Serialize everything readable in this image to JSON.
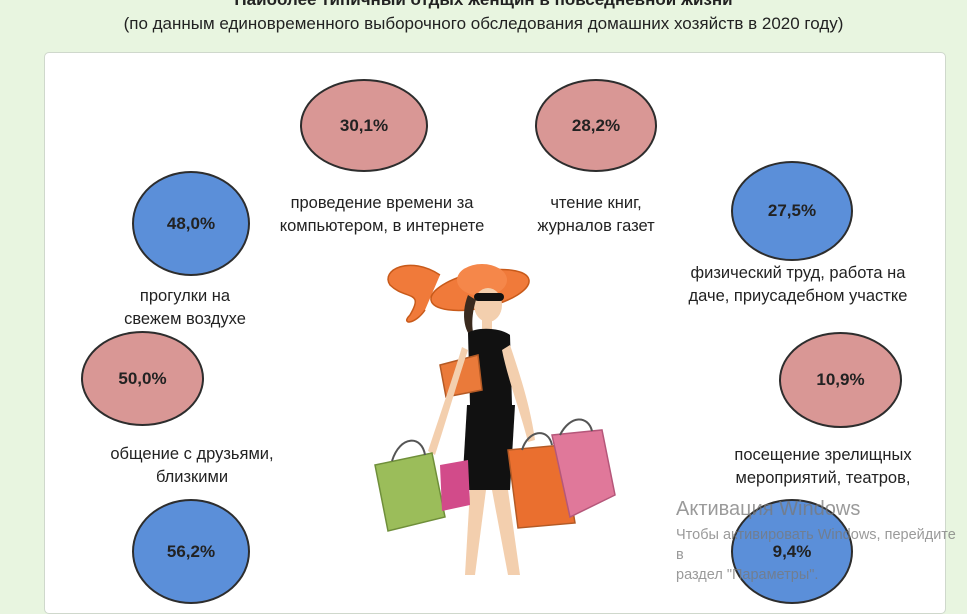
{
  "title": "Наиболее типичный отдых женщин в повседневной жизни",
  "subtitle": "(по данным единовременного выборочного обследования домашних хозяйств в 2020 году)",
  "chart_data": {
    "type": "bubble-infographic",
    "title": "Наиболее типичный отдых женщин в повседневной жизни",
    "subtitle": "(по данным единовременного выборочного обследования домашних хозяйств в 2020 году)",
    "unit": "%",
    "items": [
      {
        "label_lines": [
          "проведение времени за",
          "компьютером, в интернете"
        ],
        "value": 30.1,
        "value_label": "30,1%",
        "color": "#d99795"
      },
      {
        "label_lines": [
          "чтение книг,",
          "журналов газет"
        ],
        "value": 28.2,
        "value_label": "28,2%",
        "color": "#d99795"
      },
      {
        "label_lines": [
          "прогулки на",
          "свежем воздухе"
        ],
        "value": 48.0,
        "value_label": "48,0%",
        "color": "#5b8fd9"
      },
      {
        "label_lines": [
          "физический труд, работа на",
          "даче, приусадебном участке"
        ],
        "value": 27.5,
        "value_label": "27,5%",
        "color": "#5b8fd9"
      },
      {
        "label_lines": [
          "общение с друзьями,",
          "близкими"
        ],
        "value": 50.0,
        "value_label": "50,0%",
        "color": "#d99795"
      },
      {
        "label_lines": [
          "посещение зрелищных",
          "мероприятий, театров,"
        ],
        "value": 10.9,
        "value_label": "10,9%",
        "color": "#d99795"
      },
      {
        "label_lines": [],
        "value": 56.2,
        "value_label": "56,2%",
        "color": "#5b8fd9"
      },
      {
        "label_lines": [],
        "value": 9.4,
        "value_label": "9,4%",
        "color": "#5b8fd9"
      }
    ]
  },
  "watermark": {
    "line1": "Активация Windows",
    "line2": "Чтобы активировать Windows, перейдите в",
    "line3": "раздел \"Параметры\"."
  }
}
